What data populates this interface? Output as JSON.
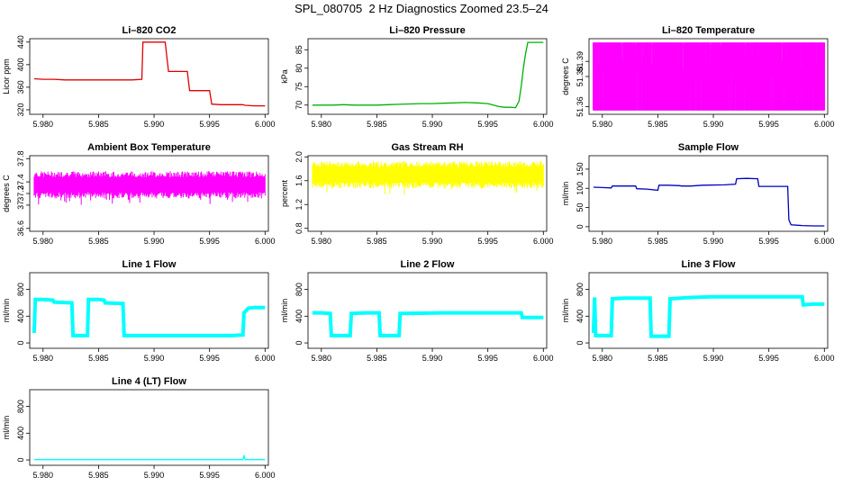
{
  "page": {
    "title": "SPL_080705  2 Hz Diagnostics Zoomed 23.5–24"
  },
  "chart_data": [
    {
      "type": "line",
      "title": "Li–820 CO2",
      "ylabel": "Licor ppm",
      "color": "#e00000",
      "xlim": [
        5.9788,
        6.0003
      ],
      "ylim": [
        312,
        446
      ],
      "xticks": [
        5.98,
        5.985,
        5.99,
        5.995,
        6.0
      ],
      "xtick_labels": [
        "5.980",
        "5.985",
        "5.990",
        "5.995",
        "6.000"
      ],
      "yticks": [
        320,
        360,
        400,
        440
      ],
      "ytick_labels": [
        "320",
        "360",
        "400",
        "440"
      ],
      "series": [
        {
          "x": [
            5.9792,
            5.98,
            5.981,
            5.982,
            5.983,
            5.984,
            5.985,
            5.986,
            5.987,
            5.988,
            5.9889,
            5.989,
            5.99,
            5.991,
            5.9913,
            5.992,
            5.993,
            5.9932,
            5.994,
            5.9945,
            5.995,
            5.9952,
            5.996,
            5.997,
            5.998,
            5.9982,
            5.999,
            6.0
          ],
          "y": [
            375,
            374,
            374,
            373,
            373,
            373,
            373,
            373,
            373,
            373,
            374,
            440,
            440,
            440,
            388,
            388,
            388,
            354,
            354,
            354,
            354,
            330,
            329,
            329,
            329,
            328,
            327,
            327
          ]
        }
      ]
    },
    {
      "type": "line",
      "title": "Li–820 Pressure",
      "ylabel": "kPa",
      "color": "#00b000",
      "xlim": [
        5.9788,
        6.0003
      ],
      "ylim": [
        67.5,
        88
      ],
      "xticks": [
        5.98,
        5.985,
        5.99,
        5.995,
        6.0
      ],
      "xtick_labels": [
        "5.980",
        "5.985",
        "5.990",
        "5.995",
        "6.000"
      ],
      "yticks": [
        70,
        75,
        80,
        85
      ],
      "ytick_labels": [
        "70",
        "75",
        "80",
        "85"
      ],
      "series": [
        {
          "x": [
            5.9792,
            5.98,
            5.981,
            5.982,
            5.983,
            5.984,
            5.985,
            5.986,
            5.987,
            5.988,
            5.989,
            5.99,
            5.991,
            5.992,
            5.993,
            5.994,
            5.995,
            5.996,
            5.9965,
            5.997,
            5.9975,
            5.9978,
            5.998,
            5.9982,
            5.9984,
            5.9986,
            5.999,
            6.0
          ],
          "y": [
            70.0,
            70.0,
            70.0,
            70.1,
            70.0,
            70.0,
            70.0,
            70.1,
            70.2,
            70.3,
            70.4,
            70.4,
            70.5,
            70.6,
            70.7,
            70.6,
            70.4,
            69.6,
            69.4,
            69.4,
            69.3,
            71.0,
            75.0,
            80.0,
            84.0,
            87.0,
            87.0,
            87.0
          ]
        }
      ]
    },
    {
      "type": "line",
      "title": "Li–820 Temperature",
      "ylabel": "degrees C",
      "color": "#ff00ff",
      "xlim": [
        5.9788,
        6.0003
      ],
      "ylim": [
        51.355,
        51.405
      ],
      "xticks": [
        5.98,
        5.985,
        5.99,
        5.995,
        6.0
      ],
      "xtick_labels": [
        "5.980",
        "5.985",
        "5.990",
        "5.995",
        "6.000"
      ],
      "yticks": [
        51.36,
        51.38,
        51.39
      ],
      "ytick_labels": [
        "51.36",
        "51.38",
        "51.39"
      ],
      "series": [
        {
          "x": [
            5.9792,
            5.985,
            5.99,
            5.995,
            6.0
          ],
          "y": [
            51.4,
            51.4,
            51.4,
            51.4,
            51.4
          ]
        }
      ]
    },
    {
      "type": "line",
      "title": "Ambient Box Temperature",
      "ylabel": "degrees C",
      "color": "#ff00ff",
      "xlim": [
        5.9788,
        6.0003
      ],
      "ylim": [
        36.55,
        37.85
      ],
      "xticks": [
        5.98,
        5.985,
        5.99,
        5.995,
        6.0
      ],
      "xtick_labels": [
        "5.980",
        "5.985",
        "5.990",
        "5.995",
        "6.000"
      ],
      "yticks": [
        36.6,
        37.0,
        37.2,
        37.4,
        37.8
      ],
      "ytick_labels": [
        "36.6",
        "37",
        "37.2",
        "37.4",
        "37.8"
      ],
      "series": [
        {
          "x": [
            5.9792,
            5.985,
            5.99,
            5.995,
            6.0
          ],
          "y": [
            37.35,
            37.35,
            37.35,
            37.35,
            37.35
          ]
        }
      ]
    },
    {
      "type": "line",
      "title": "Gas Stream RH",
      "ylabel": "percent",
      "color": "#ffff00",
      "xlim": [
        5.9788,
        6.0003
      ],
      "ylim": [
        0.75,
        2.02
      ],
      "xticks": [
        5.98,
        5.985,
        5.99,
        5.995,
        6.0
      ],
      "xtick_labels": [
        "5.980",
        "5.985",
        "5.990",
        "5.995",
        "6.000"
      ],
      "yticks": [
        0.8,
        1.2,
        1.6,
        2.0
      ],
      "ytick_labels": [
        "0.8",
        "1.2",
        "1.6",
        "2.0"
      ],
      "series": [
        {
          "x": [
            5.9792,
            5.985,
            5.99,
            5.995,
            6.0
          ],
          "y": [
            1.7,
            1.7,
            1.7,
            1.7,
            1.7
          ]
        }
      ]
    },
    {
      "type": "line",
      "title": "Sample Flow",
      "ylabel": "ml/min",
      "color": "#0000c0",
      "xlim": [
        5.9788,
        6.0003
      ],
      "ylim": [
        -12,
        185
      ],
      "xticks": [
        5.98,
        5.985,
        5.99,
        5.995,
        6.0
      ],
      "xtick_labels": [
        "5.980",
        "5.985",
        "5.990",
        "5.995",
        "6.000"
      ],
      "yticks": [
        0,
        50,
        100,
        150
      ],
      "ytick_labels": [
        "0",
        "50",
        "100",
        "150"
      ],
      "series": [
        {
          "x": [
            5.9792,
            5.98,
            5.9808,
            5.9809,
            5.982,
            5.983,
            5.9831,
            5.984,
            5.985,
            5.9851,
            5.986,
            5.987,
            5.9871,
            5.988,
            5.989,
            5.991,
            5.992,
            5.9921,
            5.993,
            5.994,
            5.9941,
            5.995,
            5.996,
            5.9967,
            5.9968,
            5.997,
            5.998,
            5.999,
            6.0
          ],
          "y": [
            103,
            102,
            101,
            106,
            106,
            106,
            99,
            98,
            95,
            108,
            108,
            107,
            106,
            106,
            108,
            109,
            111,
            125,
            126,
            125,
            105,
            105,
            105,
            105,
            18,
            5,
            3,
            2,
            2
          ]
        }
      ]
    },
    {
      "type": "line",
      "title": "Line 1 Flow",
      "ylabel": "ml/min",
      "color": "#00ffff",
      "xlim": [
        5.9788,
        6.0003
      ],
      "ylim": [
        -80,
        1050
      ],
      "xticks": [
        5.98,
        5.985,
        5.99,
        5.995,
        6.0
      ],
      "xtick_labels": [
        "5.980",
        "5.985",
        "5.990",
        "5.995",
        "6.000"
      ],
      "yticks": [
        0,
        400,
        800
      ],
      "ytick_labels": [
        "0",
        "400",
        "800"
      ],
      "series": [
        {
          "x": [
            5.9792,
            5.9793,
            5.98,
            5.9809,
            5.981,
            5.9826,
            5.9827,
            5.984,
            5.9841,
            5.985,
            5.9855,
            5.9856,
            5.987,
            5.9872,
            5.9873,
            5.989,
            5.991,
            5.993,
            5.995,
            5.997,
            5.998,
            5.9981,
            5.9985,
            5.999,
            6.0
          ],
          "y": [
            150,
            650,
            650,
            640,
            610,
            600,
            110,
            110,
            650,
            650,
            640,
            600,
            590,
            590,
            110,
            110,
            110,
            110,
            110,
            110,
            120,
            450,
            520,
            530,
            530
          ]
        }
      ]
    },
    {
      "type": "line",
      "title": "Line 2 Flow",
      "ylabel": "ml/min",
      "color": "#00ffff",
      "xlim": [
        5.9788,
        6.0003
      ],
      "ylim": [
        -80,
        1050
      ],
      "xticks": [
        5.98,
        5.985,
        5.99,
        5.995,
        6.0
      ],
      "xtick_labels": [
        "5.980",
        "5.985",
        "5.990",
        "5.995",
        "6.000"
      ],
      "yticks": [
        0,
        400,
        800
      ],
      "ytick_labels": [
        "0",
        "400",
        "800"
      ],
      "series": [
        {
          "x": [
            5.9792,
            5.98,
            5.9808,
            5.9809,
            5.9826,
            5.9827,
            5.984,
            5.9852,
            5.9853,
            5.987,
            5.9871,
            5.989,
            5.991,
            5.993,
            5.995,
            5.997,
            5.998,
            5.9981,
            5.999,
            6.0
          ],
          "y": [
            450,
            450,
            440,
            110,
            110,
            440,
            450,
            450,
            110,
            110,
            440,
            445,
            450,
            450,
            450,
            450,
            450,
            380,
            380,
            380
          ]
        }
      ]
    },
    {
      "type": "line",
      "title": "Line 3 Flow",
      "ylabel": "ml/min",
      "color": "#00ffff",
      "xlim": [
        5.9788,
        6.0003
      ],
      "ylim": [
        -80,
        1050
      ],
      "xticks": [
        5.98,
        5.985,
        5.99,
        5.995,
        6.0
      ],
      "xtick_labels": [
        "5.980",
        "5.985",
        "5.990",
        "5.995",
        "6.000"
      ],
      "yticks": [
        0,
        400,
        800
      ],
      "ytick_labels": [
        "0",
        "400",
        "800"
      ],
      "series": [
        {
          "x": [
            5.9792,
            5.9793,
            5.9794,
            5.9808,
            5.9809,
            5.982,
            5.983,
            5.9843,
            5.9844,
            5.986,
            5.9861,
            5.988,
            5.99,
            5.992,
            5.994,
            5.996,
            5.998,
            5.9981,
            5.999,
            6.0
          ],
          "y": [
            150,
            680,
            110,
            110,
            660,
            670,
            670,
            670,
            100,
            100,
            660,
            680,
            690,
            690,
            690,
            690,
            690,
            570,
            580,
            580
          ]
        }
      ]
    },
    {
      "type": "line",
      "title": "Line 4 (LT) Flow",
      "ylabel": "ml/min",
      "color": "#00ffff",
      "xlim": [
        5.9788,
        6.0003
      ],
      "ylim": [
        -80,
        1050
      ],
      "xticks": [
        5.98,
        5.985,
        5.99,
        5.995,
        6.0
      ],
      "xtick_labels": [
        "5.980",
        "5.985",
        "5.990",
        "5.995",
        "6.000"
      ],
      "yticks": [
        0,
        400,
        800
      ],
      "ytick_labels": [
        "0",
        "400",
        "800"
      ],
      "series": [
        {
          "x": [
            5.9792,
            5.983,
            5.987,
            5.991,
            5.995,
            5.998,
            5.9981,
            5.9982,
            5.999,
            6.0
          ],
          "y": [
            5,
            5,
            5,
            5,
            5,
            5,
            70,
            5,
            5,
            5
          ]
        }
      ]
    }
  ]
}
